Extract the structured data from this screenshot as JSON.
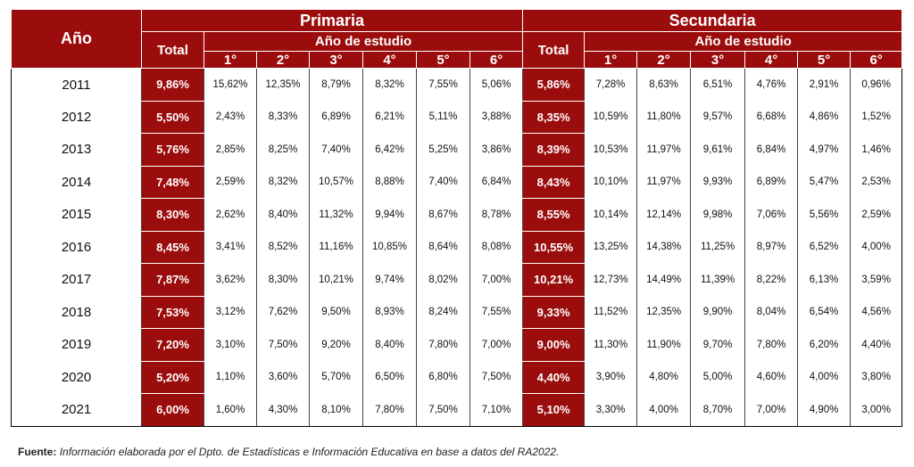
{
  "table": {
    "header": {
      "year": "Año",
      "primaria": "Primaria",
      "secundaria": "Secundaria",
      "primaria_total": "Total",
      "secundaria_total": "Total",
      "primaria_study": "Año de estudio",
      "secundaria_study": "Año de estudio",
      "primaria_grades": [
        "1°",
        "2°",
        "3°",
        "4°",
        "5°",
        "6°"
      ],
      "secundaria_grades": [
        "1°",
        "2°",
        "3°",
        "4°",
        "5°",
        "6°"
      ]
    },
    "rows": [
      [
        "2011",
        "9,86%",
        "15,62%",
        "12,35%",
        "8,79%",
        "8,32%",
        "7,55%",
        "5,06%",
        "5,86%",
        "7,28%",
        "8,63%",
        "6,51%",
        "4,76%",
        "2,91%",
        "0,96%"
      ],
      [
        "2012",
        "5,50%",
        "2,43%",
        "8,33%",
        "6,89%",
        "6,21%",
        "5,11%",
        "3,88%",
        "8,35%",
        "10,59%",
        "11,80%",
        "9,57%",
        "6,68%",
        "4,86%",
        "1,52%"
      ],
      [
        "2013",
        "5,76%",
        "2,85%",
        "8,25%",
        "7,40%",
        "6,42%",
        "5,25%",
        "3,86%",
        "8,39%",
        "10,53%",
        "11,97%",
        "9,61%",
        "6,84%",
        "4,97%",
        "1,46%"
      ],
      [
        "2014",
        "7,48%",
        "2,59%",
        "8,32%",
        "10,57%",
        "8,88%",
        "7,40%",
        "6,84%",
        "8,43%",
        "10,10%",
        "11,97%",
        "9,93%",
        "6,89%",
        "5,47%",
        "2,53%"
      ],
      [
        "2015",
        "8,30%",
        "2,62%",
        "8,40%",
        "11,32%",
        "9,94%",
        "8,67%",
        "8,78%",
        "8,55%",
        "10,14%",
        "12,14%",
        "9,98%",
        "7,06%",
        "5,56%",
        "2,59%"
      ],
      [
        "2016",
        "8,45%",
        "3,41%",
        "8,52%",
        "11,16%",
        "10,85%",
        "8,64%",
        "8,08%",
        "10,55%",
        "13,25%",
        "14,38%",
        "11,25%",
        "8,97%",
        "6,52%",
        "4,00%"
      ],
      [
        "2017",
        "7,87%",
        "3,62%",
        "8,30%",
        "10,21%",
        "9,74%",
        "8,02%",
        "7,00%",
        "10,21%",
        "12,73%",
        "14,49%",
        "11,39%",
        "8,22%",
        "6,13%",
        "3,59%"
      ],
      [
        "2018",
        "7,53%",
        "3,12%",
        "7,62%",
        "9,50%",
        "8,93%",
        "8,24%",
        "7,55%",
        "9,33%",
        "11,52%",
        "12,35%",
        "9,90%",
        "8,04%",
        "6,54%",
        "4,56%"
      ],
      [
        "2019",
        "7,20%",
        "3,10%",
        "7,50%",
        "9,20%",
        "8,40%",
        "7,80%",
        "7,00%",
        "9,00%",
        "11,30%",
        "11,90%",
        "9,70%",
        "7,80%",
        "6,20%",
        "4,40%"
      ],
      [
        "2020",
        "5,20%",
        "1,10%",
        "3,60%",
        "5,70%",
        "6,50%",
        "6,80%",
        "7,50%",
        "4,40%",
        "3,90%",
        "4,80%",
        "5,00%",
        "4,60%",
        "4,00%",
        "3,80%"
      ],
      [
        "2021",
        "6,00%",
        "1,60%",
        "4,30%",
        "8,10%",
        "7,80%",
        "7,50%",
        "7,10%",
        "5,10%",
        "3,30%",
        "4,00%",
        "8,70%",
        "7,00%",
        "4,90%",
        "3,00%"
      ]
    ],
    "footer": {
      "label": "Fuente:",
      "text": "Información elaborada por el Dpto. de Estadísticas e Información Educativa en base a datos del RA2022."
    }
  }
}
